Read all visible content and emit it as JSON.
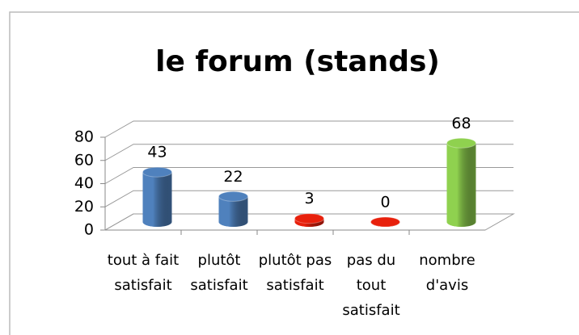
{
  "chart_data": {
    "type": "bar3d",
    "title": "le forum (stands)",
    "categories": [
      "tout à fait satisfait",
      "plutôt satisfait",
      "plutôt pas satisfait",
      "pas du tout satisfait",
      "nombre d'avis"
    ],
    "values": [
      43,
      22,
      3,
      0,
      68
    ],
    "colors": [
      "#4f81bd",
      "#4f81bd",
      "#e8200c",
      "#e8200c",
      "#8fd14f"
    ],
    "ylim": [
      0,
      80
    ],
    "yticks": [
      0,
      20,
      40,
      60,
      80
    ],
    "grid": true
  }
}
